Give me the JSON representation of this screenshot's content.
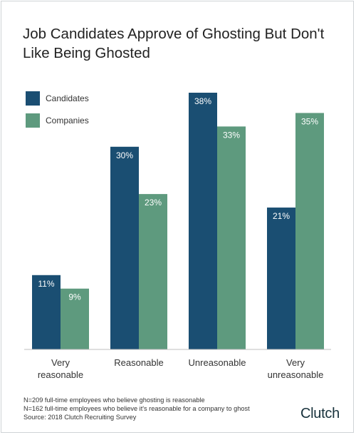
{
  "title": "Job Candidates Approve of Ghosting But Don't Like Being Ghosted",
  "colors": {
    "candidates": "#1a4e72",
    "companies": "#5e9a7e",
    "axis": "#bfbfbf"
  },
  "legend": [
    {
      "label": "Candidates",
      "color": "#1a4e72"
    },
    {
      "label": "Companies",
      "color": "#5e9a7e"
    }
  ],
  "chart_data": {
    "type": "bar",
    "categories": [
      "Very reasonable",
      "Reasonable",
      "Unreasonable",
      "Very unreasonable"
    ],
    "series": [
      {
        "name": "Candidates",
        "values": [
          11,
          30,
          38,
          21
        ],
        "labels": [
          "11%",
          "30%",
          "38%",
          "21%"
        ]
      },
      {
        "name": "Companies",
        "values": [
          9,
          23,
          33,
          35
        ],
        "labels": [
          "9%",
          "23%",
          "33%",
          "35%"
        ]
      }
    ],
    "ylim": [
      0,
      38
    ],
    "grid": false,
    "legend_position": "top-left"
  },
  "category_lines": [
    [
      "Very",
      "reasonable"
    ],
    [
      "Reasonable"
    ],
    [
      "Unreasonable"
    ],
    [
      "Very",
      "unreasonable"
    ]
  ],
  "notes": [
    "N=209 full-time employees who believe ghosting is reasonable",
    "N=162 full-time employees who believe it's reasonable for a company to ghost",
    "Source: 2018 Clutch Recruiting Survey"
  ],
  "brand": "Clutch"
}
